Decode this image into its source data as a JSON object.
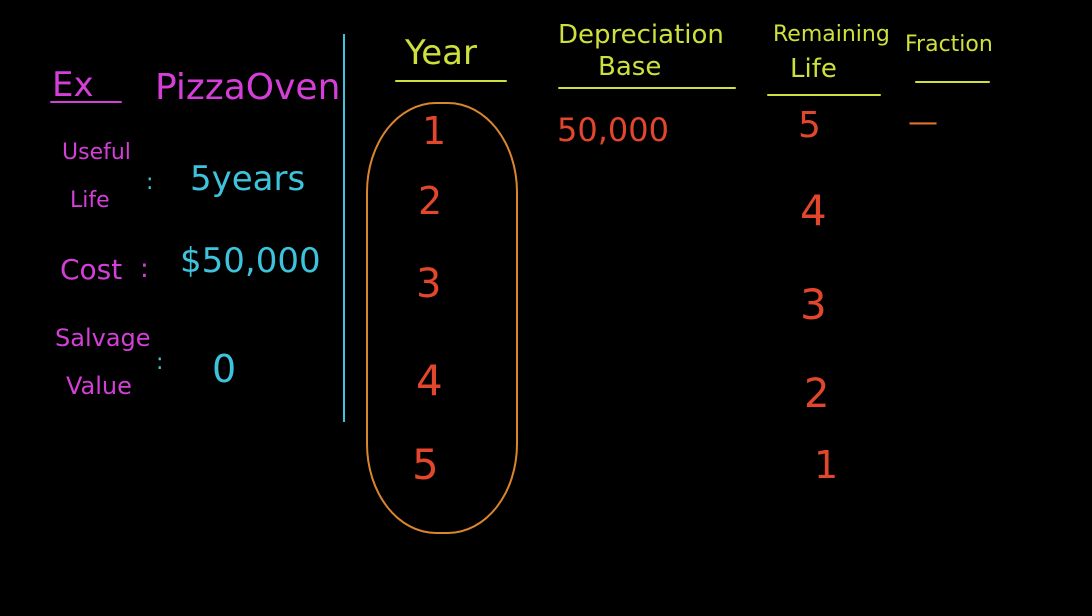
{
  "colors": {
    "given_labels": "#d43fd8",
    "given_values": "#3ec3dc",
    "headers": "#cde03c",
    "table_values": "#e2462c",
    "year_oval": "#d9862e",
    "divider": "#3ec3dc"
  },
  "example": {
    "prefix": "Ex",
    "title": "PizzaOven",
    "useful_life_label_1": "Useful",
    "useful_life_label_2": "Life",
    "useful_life_colon": ":",
    "useful_life_value": "5years",
    "cost_label": "Cost",
    "cost_colon": ":",
    "cost_value": "$50,000",
    "salvage_label_1": "Salvage",
    "salvage_label_2": "Value",
    "salvage_colon": ":",
    "salvage_value": "0"
  },
  "table": {
    "headers": {
      "year": "Year",
      "base_1": "Depreciation",
      "base_2": "Base",
      "life_1": "Remaining",
      "life_2": "Life",
      "fraction": "Fraction"
    },
    "years": [
      "1",
      "2",
      "3",
      "4",
      "5"
    ],
    "depreciation_base": [
      "50,000"
    ],
    "remaining_life": [
      "5",
      "4",
      "3",
      "2",
      "1"
    ],
    "fraction": [
      "—"
    ]
  }
}
